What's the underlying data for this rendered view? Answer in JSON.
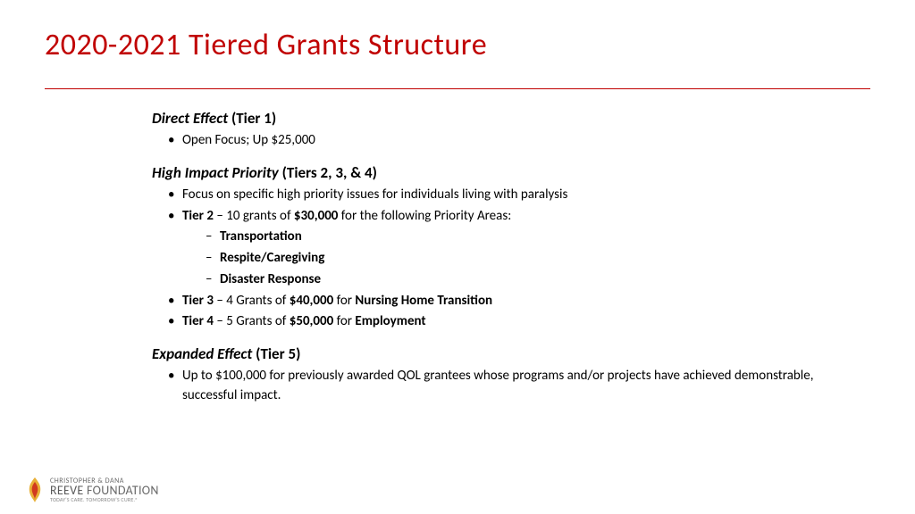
{
  "title": "2020-2021 Tiered Grants Structure",
  "colors": {
    "accent": "#c00000",
    "text": "#000000",
    "bg": "#ffffff"
  },
  "sections": [
    {
      "head_ital": "Direct Effect",
      "head_rest": " (Tier 1)",
      "bullets": [
        {
          "text": "Open Focus; Up $25,000"
        }
      ]
    },
    {
      "head_ital": "High Impact Priority",
      "head_rest": " (Tiers 2, 3, & 4)",
      "bullets": [
        {
          "text": "Focus on specific high priority issues for individuals living with paralysis"
        },
        {
          "html": "<span class='b'>Tier 2</span> – 10 grants of <span class='b'>$30,000</span> for the following Priority Areas:",
          "sub": [
            "Transportation",
            "Respite/Caregiving",
            "Disaster Response"
          ]
        },
        {
          "html": "<span class='b'>Tier 3</span> – 4 Grants of <span class='b'>$40,000</span> for <span class='b'>Nursing Home Transition</span>"
        },
        {
          "html": "<span class='b'>Tier 4</span> – 5 Grants of <span class='b'>$50,000</span> for <span class='b'>Employment</span>"
        }
      ]
    },
    {
      "head_ital": "Expanded Effect",
      "head_rest": " (Tier 5)",
      "bullets": [
        {
          "text": "Up to $100,000 for previously awarded QOL grantees whose programs and/or projects have achieved demonstrable, successful impact."
        }
      ]
    }
  ],
  "logo": {
    "line1": "CHRISTOPHER & DANA",
    "line2a": "REEVE",
    "line2b": " FOUNDATION",
    "line3": "TODAY'S CARE. TOMORROW'S CURE.®"
  }
}
